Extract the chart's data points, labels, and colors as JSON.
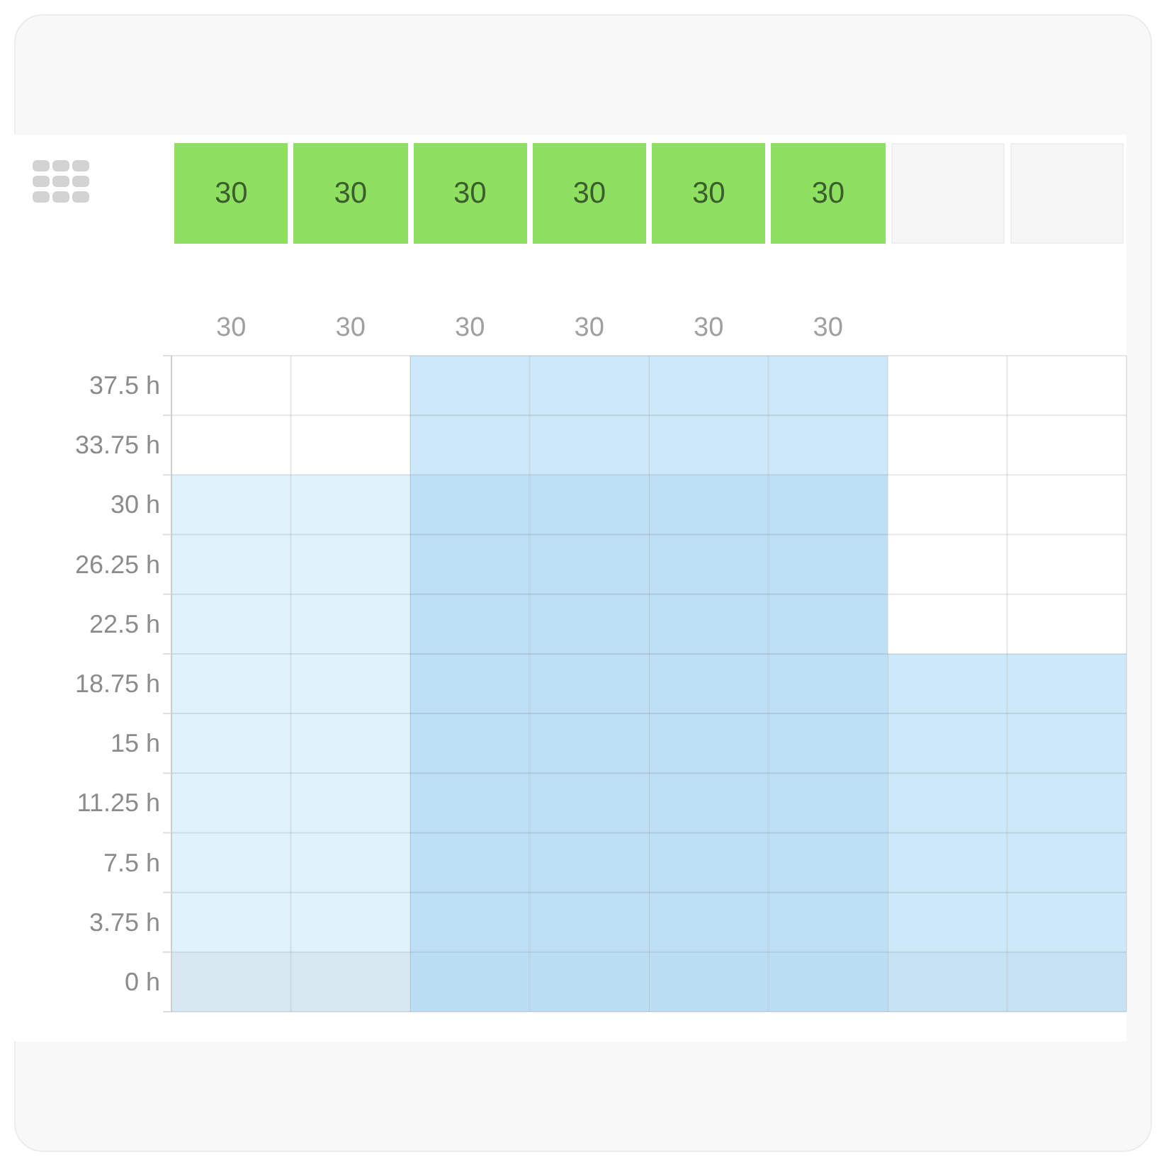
{
  "chart_data": {
    "type": "bar",
    "stacked": true,
    "categories": [
      "30",
      "30",
      "30",
      "30",
      "30",
      "30",
      null,
      null
    ],
    "series": [
      {
        "colors": [
          "#d8e8f2",
          "#d8e8f2",
          "#bbdef5",
          "#bbdef5",
          "#bbdef5",
          "#bbdef5",
          "#c6e2f3",
          "#c6e2f3"
        ],
        "values": [
          -1.875,
          -1.875,
          -1.875,
          -1.875,
          -1.875,
          -1.875,
          -1.875,
          -1.875
        ]
      },
      {
        "colors": [
          "#d8e8f2",
          "#d8e8f2",
          "#bbdef5",
          "#bbdef5",
          "#bbdef5",
          "#bbdef5",
          "#c6e2f3",
          "#c6e2f3"
        ],
        "values": [
          1.875,
          1.875,
          1.875,
          1.875,
          1.875,
          1.875,
          1.875,
          1.875
        ]
      },
      {
        "colors": [
          "#e0f2fc",
          "#e0f2fc",
          "#bde0f7",
          "#bde0f7",
          "#bde0f7",
          "#bde0f7",
          "#cde8f8",
          "#cde8f8"
        ],
        "values": [
          30,
          30,
          30,
          30,
          30,
          30,
          18.75,
          18.75
        ]
      },
      {
        "color": "#cde8f8",
        "values": [
          null,
          null,
          7.5,
          7.5,
          7.5,
          7.5,
          null,
          null
        ]
      }
    ],
    "ylim": [
      -1.875,
      39.375
    ],
    "yticks": [
      {
        "value": -1.875,
        "label": null
      },
      {
        "value": 0,
        "label": "0 h"
      },
      {
        "value": 1.875,
        "label": null
      },
      {
        "value": 3.75,
        "label": "3.75 h"
      },
      {
        "value": 5.625,
        "label": null
      },
      {
        "value": 7.5,
        "label": "7.5 h"
      },
      {
        "value": 9.375,
        "label": null
      },
      {
        "value": 11.25,
        "label": "11.25 h"
      },
      {
        "value": 13.125,
        "label": null
      },
      {
        "value": 15,
        "label": "15 h"
      },
      {
        "value": 16.875,
        "label": null
      },
      {
        "value": 18.75,
        "label": "18.75 h"
      },
      {
        "value": 20.625,
        "label": null
      },
      {
        "value": 22.5,
        "label": "22.5 h"
      },
      {
        "value": 24.375,
        "label": null
      },
      {
        "value": 26.25,
        "label": "26.25 h"
      },
      {
        "value": 28.125,
        "label": null
      },
      {
        "value": 30,
        "label": "30 h"
      },
      {
        "value": 31.875,
        "label": null
      },
      {
        "value": 33.75,
        "label": "33.75 h"
      },
      {
        "value": 35.625,
        "label": null
      },
      {
        "value": 37.5,
        "label": "37.5 h"
      },
      {
        "value": 39.375,
        "label": null
      }
    ],
    "grid": true,
    "annotations": [
      "30",
      "30",
      "30",
      "30",
      "30",
      "30"
    ]
  }
}
